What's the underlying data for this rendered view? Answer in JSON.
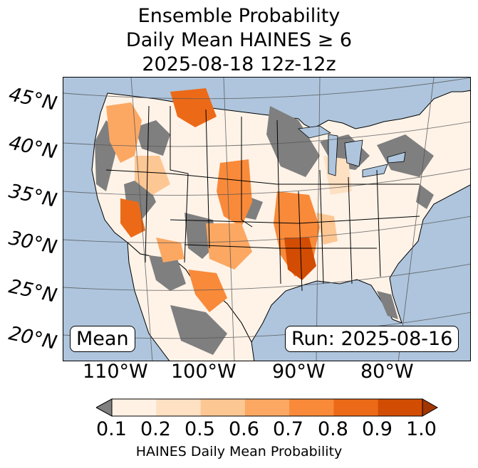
{
  "title": {
    "line1": "Ensemble Probability",
    "line2": "Daily Mean HAINES ≥ 6",
    "line3": "2025-08-18 12z-12z"
  },
  "latitude_labels": [
    "45°N",
    "40°N",
    "35°N",
    "30°N",
    "25°N",
    "20°N"
  ],
  "longitude_labels": [
    "110°W",
    "100°W",
    "90°W",
    "80°W"
  ],
  "mean_label": "Mean",
  "run_label": "Run: 2025-08-16",
  "colorbar": {
    "ticks": [
      "0.1",
      "0.2",
      "0.5",
      "0.6",
      "0.7",
      "0.8",
      "0.9",
      "1.0"
    ],
    "colors": [
      "#fff1e4",
      "#fee0c3",
      "#fdc794",
      "#fca863",
      "#f98a3a",
      "#ec6a17",
      "#d24d03"
    ],
    "under_color": "#808080",
    "over_color": "#a13603",
    "label": "HAINES Daily Mean Probability"
  },
  "colors": {
    "ocean": "#aec5dd",
    "land": "#fff3e8",
    "no_data": "#7f7f7f",
    "border": "#000000",
    "grid": "#555555"
  }
}
